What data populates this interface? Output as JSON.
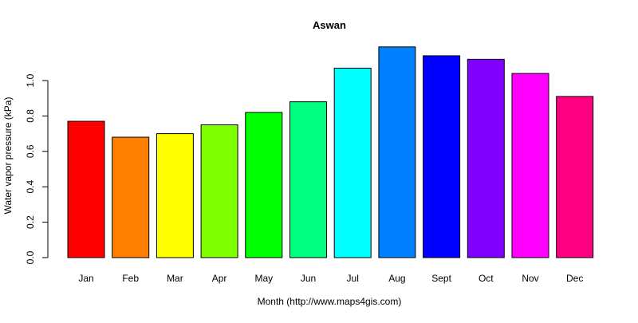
{
  "chart_data": {
    "type": "bar",
    "title": "Aswan",
    "xlabel": "Month (http://www.maps4gis.com)",
    "ylabel": "Water vapor pressure (kPa)",
    "categories": [
      "Jan",
      "Feb",
      "Mar",
      "Apr",
      "May",
      "Jun",
      "Jul",
      "Aug",
      "Sept",
      "Oct",
      "Nov",
      "Dec"
    ],
    "values": [
      0.77,
      0.68,
      0.7,
      0.75,
      0.82,
      0.88,
      1.07,
      1.19,
      1.14,
      1.12,
      1.04,
      0.91
    ],
    "colors": [
      "#FF0000",
      "#FF8000",
      "#FFFF00",
      "#80FF00",
      "#00FF00",
      "#00FF80",
      "#00FFFF",
      "#0080FF",
      "#0000FF",
      "#8000FF",
      "#FF00FF",
      "#FF0080"
    ],
    "yticks": [
      0.0,
      0.2,
      0.4,
      0.6,
      0.8,
      1.0
    ],
    "ytick_labels": [
      "0.0",
      "0.2",
      "0.4",
      "0.6",
      "0.8",
      "1.0"
    ],
    "ylim": [
      0,
      1.2
    ],
    "grid": false,
    "legend": "none",
    "bar_outline_color": "#000000"
  }
}
